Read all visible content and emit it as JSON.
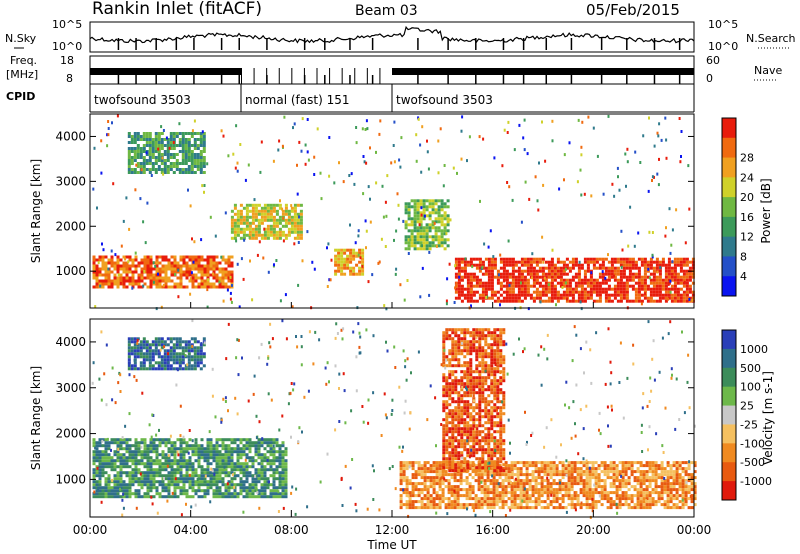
{
  "header": {
    "title": "Rankin Inlet (fitACF)",
    "beam": "Beam 03",
    "date": "05/Feb/2015"
  },
  "noise_panel": {
    "left_label": "N.Sky",
    "right_label": "N.Search",
    "left_ticks": [
      "10^5",
      "10^0"
    ],
    "right_ticks": [
      "10^5",
      "10^0"
    ]
  },
  "freq_panel": {
    "left_label_1": "Freq.",
    "left_label_2": "[MHz]",
    "right_label": "Nave",
    "left_ticks": [
      "18",
      "8"
    ],
    "right_ticks": [
      "60",
      "0"
    ]
  },
  "cpid_panel": {
    "label": "CPID",
    "modes": [
      {
        "name": "twofsound 3503",
        "start_hour": 0,
        "end_hour": 6
      },
      {
        "name": "normal (fast) 151",
        "start_hour": 6,
        "end_hour": 12
      },
      {
        "name": "twofsound 3503",
        "start_hour": 12,
        "end_hour": 24
      }
    ]
  },
  "chart_data": [
    {
      "type": "heatmap",
      "name": "Power",
      "ylabel": "Slant Range [km]",
      "xlabel": "",
      "xlim": [
        0,
        24
      ],
      "ylim": [
        180,
        4500
      ],
      "y_ticks": [
        "1000",
        "2000",
        "3000",
        "4000"
      ],
      "colorbar_label": "Power [dB]",
      "colorbar_ticks": [
        "4",
        "8",
        "12",
        "16",
        "20",
        "24",
        "28"
      ],
      "colors": [
        "#0a14f0",
        "#2450c8",
        "#2f7a8c",
        "#3c9a5a",
        "#6fb842",
        "#cfd12a",
        "#f0a020",
        "#f06a10",
        "#e81c0c"
      ],
      "regions": [
        {
          "x": [
            0.1,
            5.6
          ],
          "y": [
            650,
            1350
          ],
          "level": 7
        },
        {
          "x": [
            5.6,
            8.4
          ],
          "y": [
            1700,
            2500
          ],
          "level": 5
        },
        {
          "x": [
            9.7,
            10.8
          ],
          "y": [
            900,
            1500
          ],
          "level": 6
        },
        {
          "x": [
            12.5,
            14.2
          ],
          "y": [
            1500,
            2600
          ],
          "level": 4
        },
        {
          "x": [
            14.5,
            24.0
          ],
          "y": [
            350,
            1300
          ],
          "level": 8
        },
        {
          "x": [
            1.5,
            4.5
          ],
          "y": [
            3200,
            4100
          ],
          "level": 3
        }
      ]
    },
    {
      "type": "heatmap",
      "name": "Velocity",
      "ylabel": "Slant Range [km]",
      "xlabel": "Time UT",
      "xlim": [
        0,
        24
      ],
      "ylim": [
        180,
        4500
      ],
      "y_ticks": [
        "1000",
        "2000",
        "3000",
        "4000"
      ],
      "x_ticks": [
        "00:00",
        "04:00",
        "08:00",
        "12:00",
        "16:00",
        "20:00",
        "00:00"
      ],
      "colorbar_label": "Velocity [m s-1]",
      "colorbar_ticks": [
        "1000",
        "500",
        "100",
        "25",
        "-25",
        "-100",
        "-500",
        "-1000"
      ],
      "colors": [
        "#2a3fb8",
        "#2f6f8a",
        "#3c8c5a",
        "#6db84a",
        "#c8c8c8",
        "#f5c060",
        "#f08a20",
        "#e85a10",
        "#e01a0c"
      ],
      "regions": [
        {
          "x": [
            0.1,
            7.8
          ],
          "y": [
            600,
            1900
          ],
          "level": 2
        },
        {
          "x": [
            12.3,
            24.0
          ],
          "y": [
            400,
            1400
          ],
          "level": 6
        },
        {
          "x": [
            1.5,
            4.5
          ],
          "y": [
            3400,
            4100
          ],
          "level": 1
        },
        {
          "x": [
            14.0,
            16.5
          ],
          "y": [
            1200,
            4300
          ],
          "level": 7
        }
      ]
    }
  ]
}
